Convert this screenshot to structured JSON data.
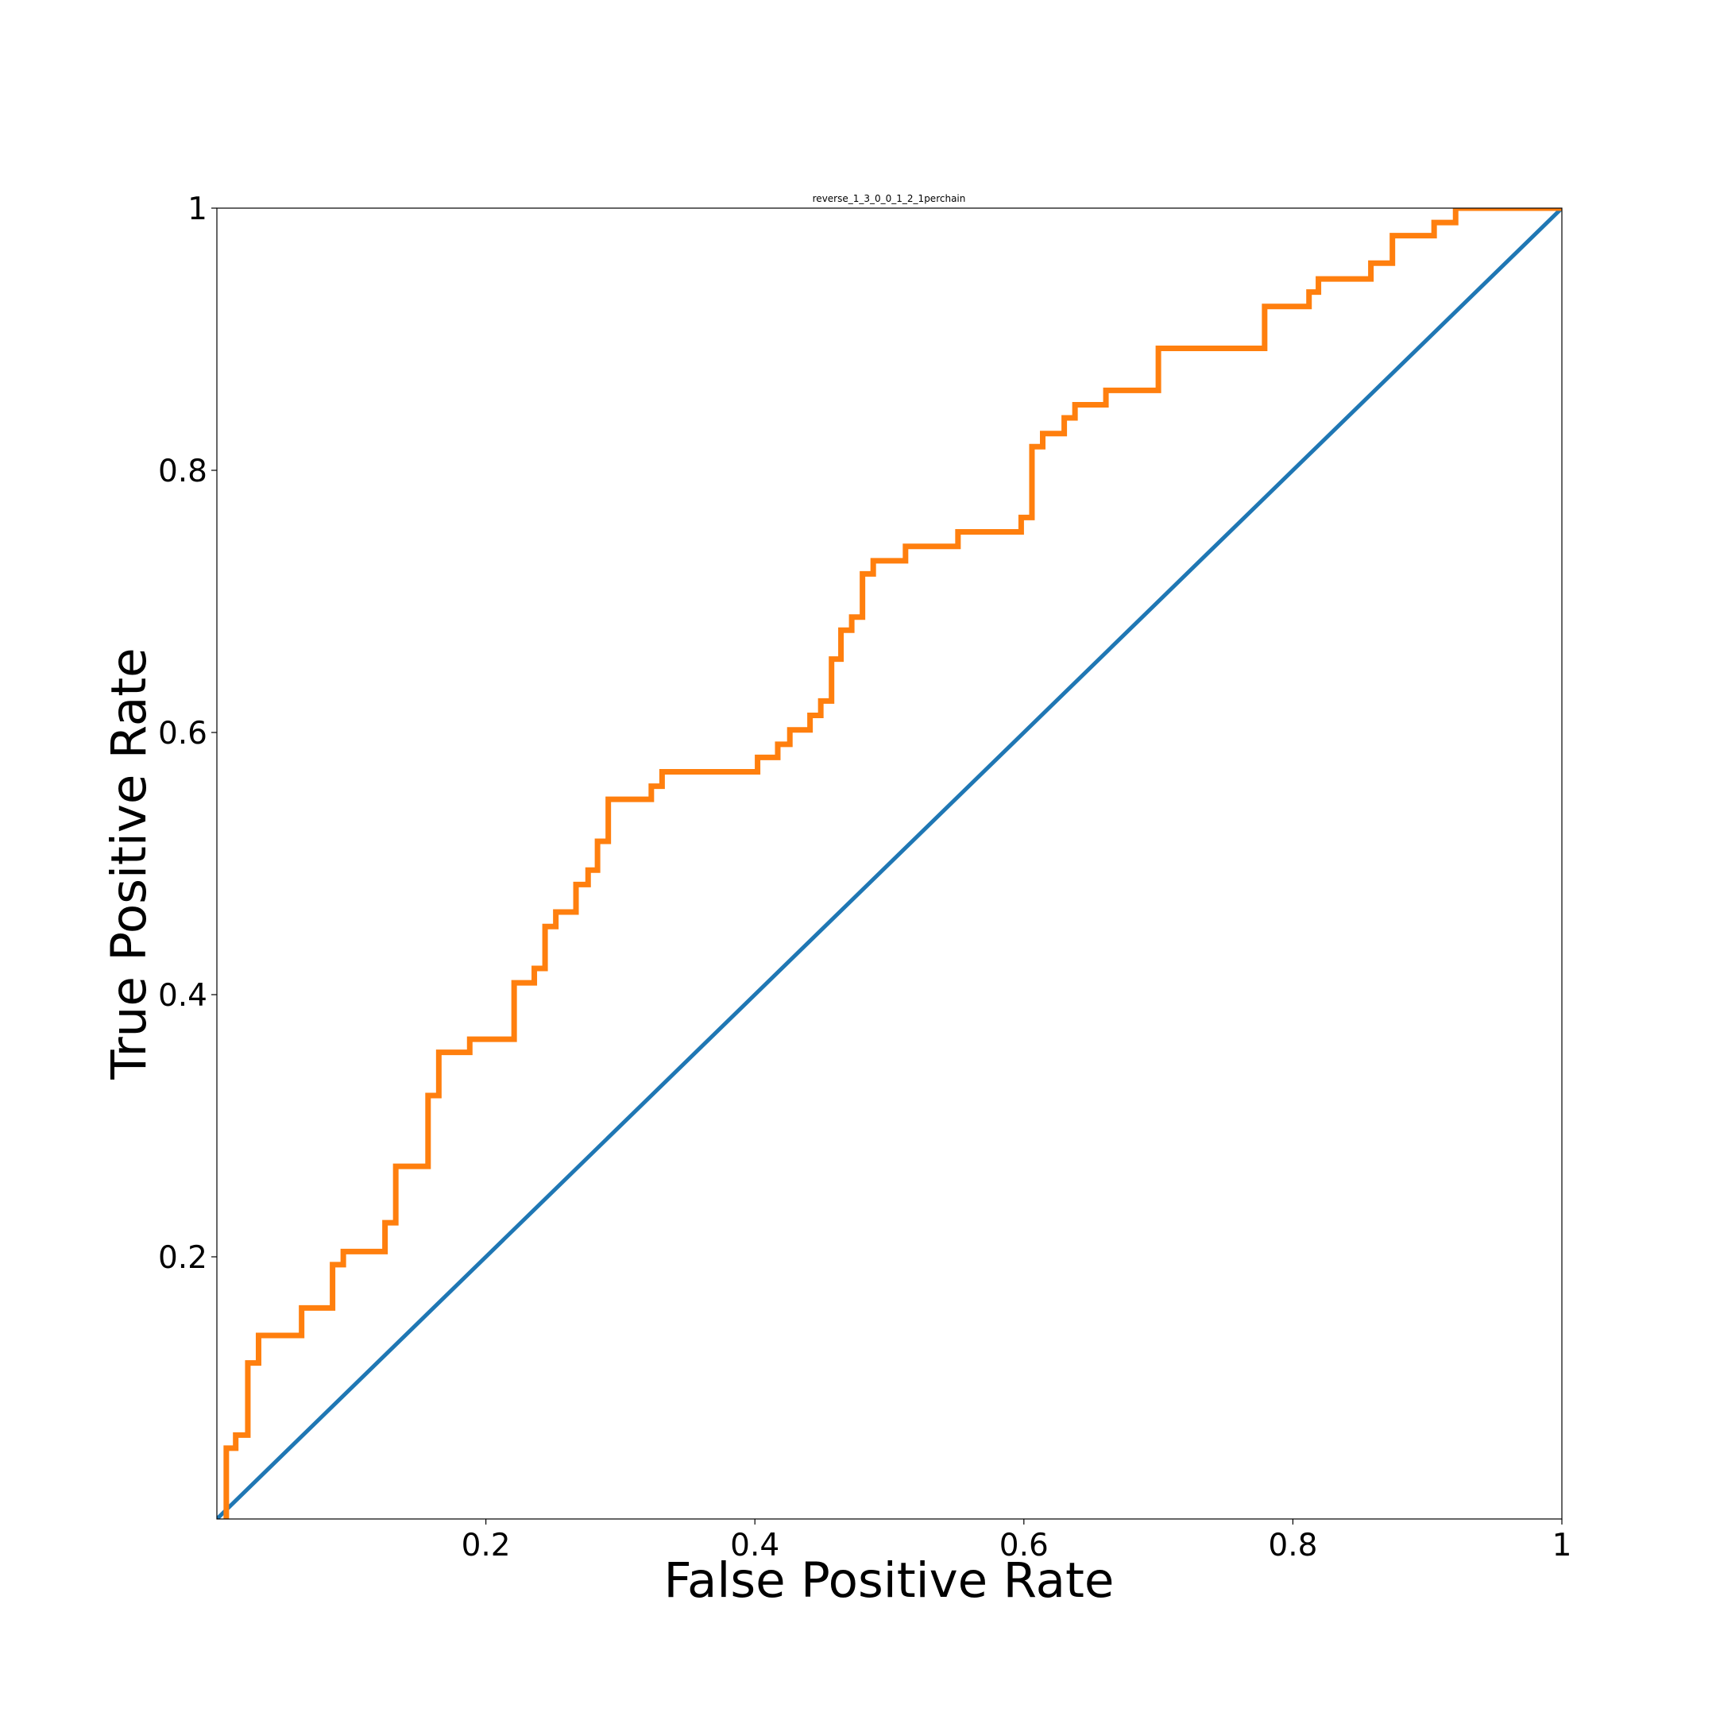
{
  "chart_data": {
    "type": "line",
    "title": "reverse_1_3_0_0_1_2_1perchain",
    "x_label": "False Positive Rate",
    "y_label": "True Positive Rate",
    "xlim": [
      0,
      1
    ],
    "ylim": [
      0,
      1
    ],
    "xticks": [
      0.2,
      0.4,
      0.6,
      0.8,
      1
    ],
    "yticks": [
      0.2,
      0.4,
      0.6,
      0.8,
      1
    ],
    "series": [
      {
        "color": "#1f77b4",
        "x": [
          0,
          1
        ],
        "values": [
          0,
          1
        ]
      },
      {
        "color": "#ff7f0e",
        "x": [
          0.007,
          0.007,
          0.014,
          0.014,
          0.023,
          0.023,
          0.031,
          0.031,
          0.063,
          0.063,
          0.086,
          0.086,
          0.094,
          0.094,
          0.125,
          0.125,
          0.133,
          0.133,
          0.157,
          0.157,
          0.165,
          0.165,
          0.188,
          0.188,
          0.221,
          0.221,
          0.236,
          0.236,
          0.244,
          0.244,
          0.252,
          0.252,
          0.267,
          0.267,
          0.276,
          0.276,
          0.283,
          0.283,
          0.291,
          0.291,
          0.323,
          0.323,
          0.331,
          0.331,
          0.402,
          0.402,
          0.417,
          0.417,
          0.426,
          0.426,
          0.441,
          0.441,
          0.449,
          0.449,
          0.457,
          0.457,
          0.464,
          0.464,
          0.472,
          0.472,
          0.48,
          0.48,
          0.488,
          0.488,
          0.512,
          0.512,
          0.551,
          0.551,
          0.598,
          0.598,
          0.606,
          0.606,
          0.614,
          0.614,
          0.63,
          0.63,
          0.638,
          0.638,
          0.661,
          0.661,
          0.7,
          0.7,
          0.779,
          0.779,
          0.812,
          0.812,
          0.819,
          0.819,
          0.858,
          0.858,
          0.874,
          0.874,
          0.905,
          0.905,
          0.921,
          0.921,
          1
        ],
        "values": [
          0,
          0.054,
          0.054,
          0.064,
          0.064,
          0.119,
          0.119,
          0.14,
          0.14,
          0.161,
          0.161,
          0.194,
          0.194,
          0.204,
          0.204,
          0.226,
          0.226,
          0.269,
          0.269,
          0.323,
          0.323,
          0.356,
          0.356,
          0.366,
          0.366,
          0.409,
          0.409,
          0.42,
          0.42,
          0.452,
          0.452,
          0.463,
          0.463,
          0.484,
          0.484,
          0.495,
          0.495,
          0.517,
          0.517,
          0.549,
          0.549,
          0.559,
          0.559,
          0.57,
          0.57,
          0.581,
          0.581,
          0.591,
          0.591,
          0.602,
          0.602,
          0.613,
          0.613,
          0.624,
          0.624,
          0.656,
          0.656,
          0.678,
          0.678,
          0.688,
          0.688,
          0.721,
          0.721,
          0.731,
          0.731,
          0.742,
          0.742,
          0.753,
          0.753,
          0.764,
          0.764,
          0.818,
          0.818,
          0.828,
          0.828,
          0.84,
          0.84,
          0.85,
          0.85,
          0.861,
          0.861,
          0.893,
          0.893,
          0.925,
          0.925,
          0.936,
          0.936,
          0.946,
          0.946,
          0.958,
          0.958,
          0.979,
          0.979,
          0.989,
          0.989,
          1,
          1
        ]
      }
    ]
  }
}
